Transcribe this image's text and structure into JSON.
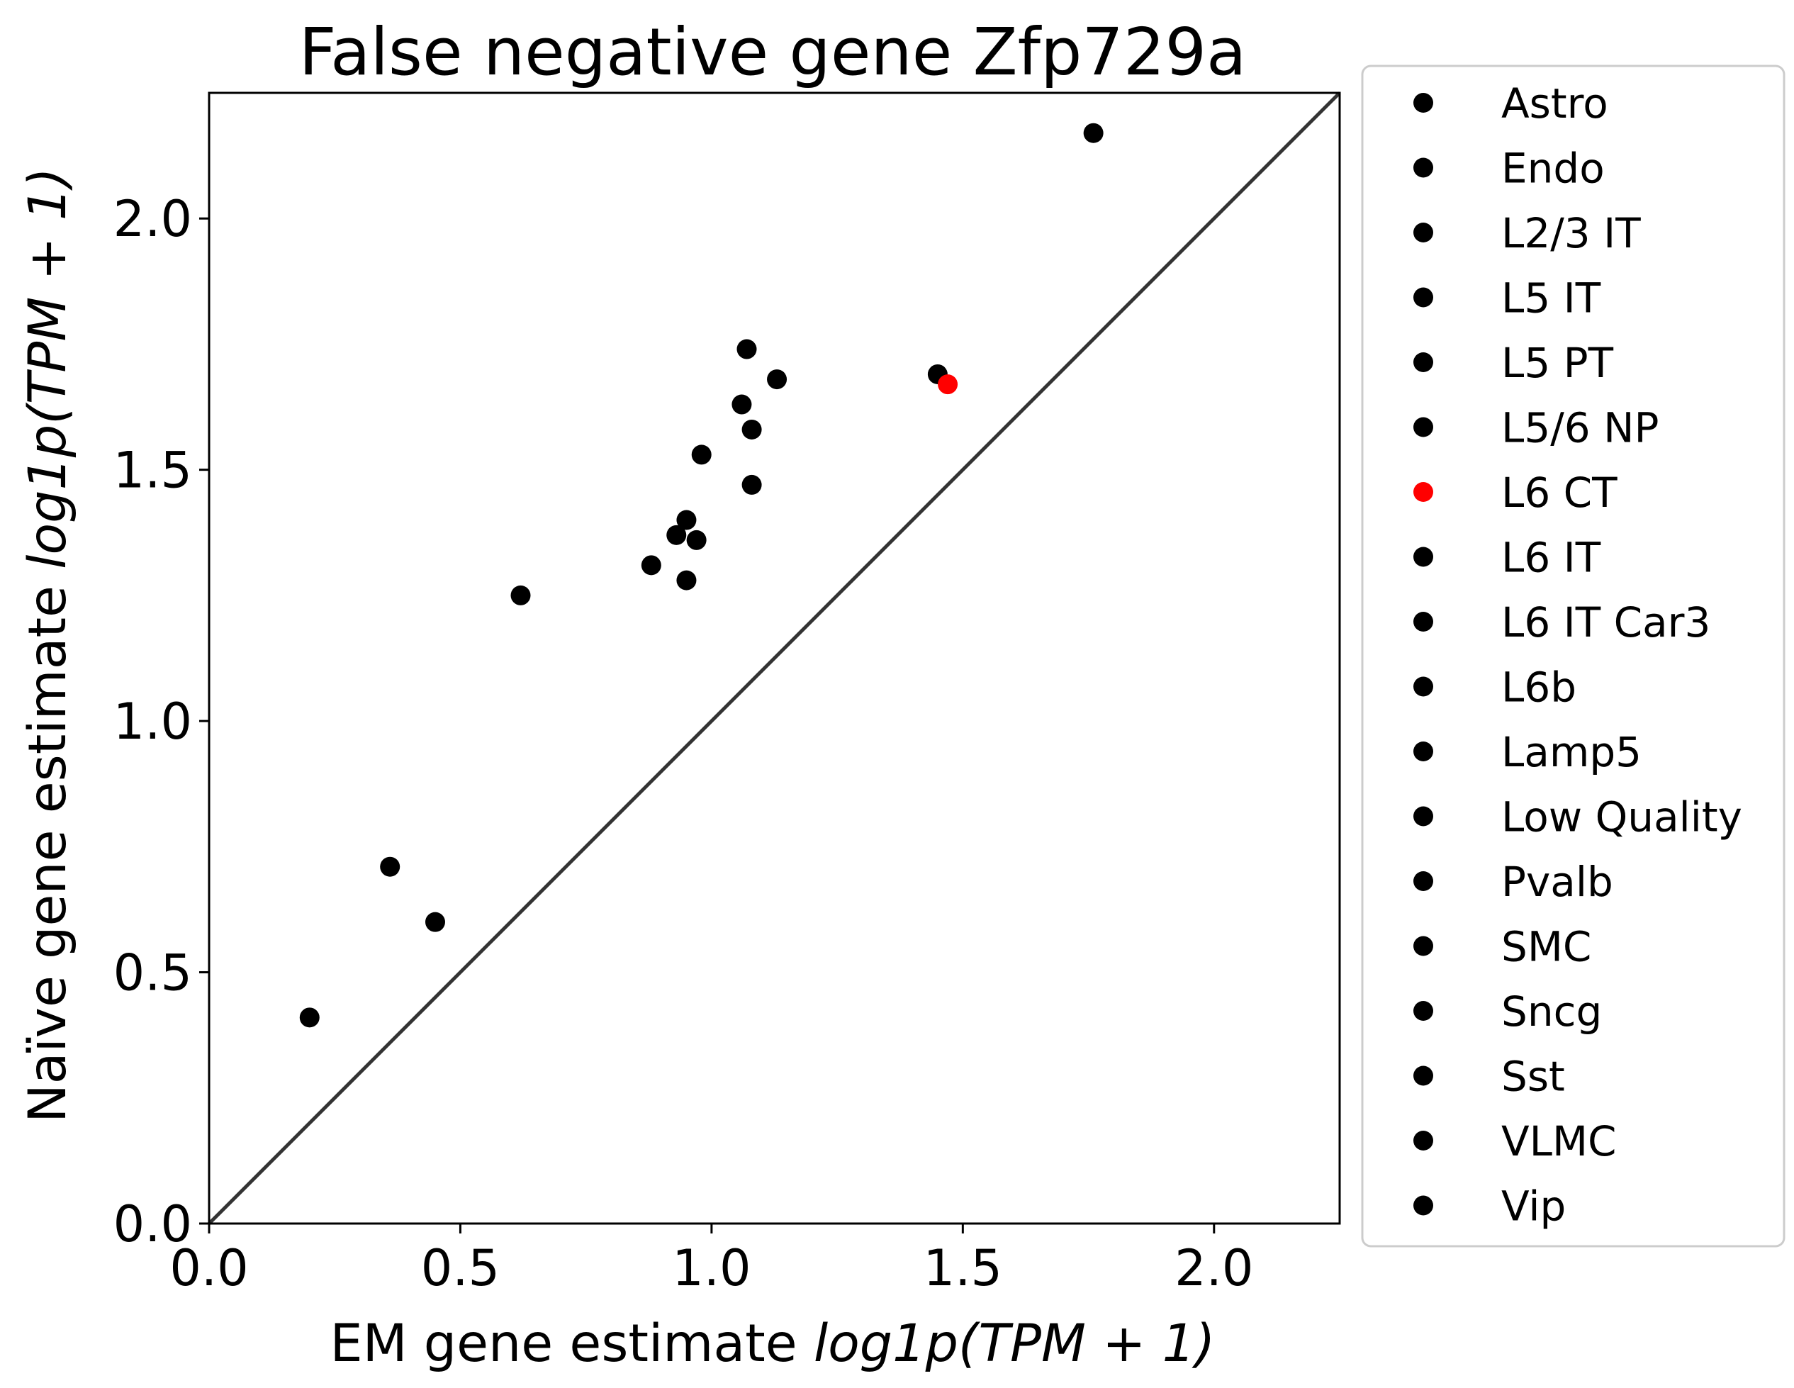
{
  "chart_data": {
    "type": "scatter",
    "title": "False negative gene Zfp729a",
    "xlabel": {
      "prefix": "EM gene estimate ",
      "math": "log1p(TPM + 1)"
    },
    "ylabel": {
      "prefix": "Naïve gene estimate ",
      "math": "log1p(TPM + 1)"
    },
    "xlim": [
      0,
      2.25
    ],
    "ylim": [
      0,
      2.25
    ],
    "xticks": [
      "0.0",
      "0.5",
      "1.0",
      "1.5",
      "2.0"
    ],
    "yticks": [
      "0.0",
      "0.5",
      "1.0",
      "1.5",
      "2.0"
    ],
    "grid": false,
    "legend_position": "outside-right",
    "reference_line": {
      "type": "identity",
      "color": "#333333"
    },
    "colors": {
      "default": "#000000",
      "highlight": "#ff0000"
    },
    "highlight_series": "L6 CT",
    "series": [
      {
        "name": "Astro",
        "x": 0.2,
        "y": 0.41
      },
      {
        "name": "Endo",
        "x": 0.36,
        "y": 0.71
      },
      {
        "name": "L2/3 IT",
        "x": 1.07,
        "y": 1.74
      },
      {
        "name": "L5 IT",
        "x": 1.06,
        "y": 1.63
      },
      {
        "name": "L5 PT",
        "x": 1.45,
        "y": 1.69
      },
      {
        "name": "L5/6 NP",
        "x": 1.76,
        "y": 2.17
      },
      {
        "name": "L6 CT",
        "x": 1.47,
        "y": 1.67
      },
      {
        "name": "L6 IT",
        "x": 1.08,
        "y": 1.58
      },
      {
        "name": "L6 IT Car3",
        "x": 1.13,
        "y": 1.68
      },
      {
        "name": "L6b",
        "x": 0.98,
        "y": 1.53
      },
      {
        "name": "Lamp5",
        "x": 0.95,
        "y": 1.4
      },
      {
        "name": "Low Quality",
        "x": 0.45,
        "y": 0.6
      },
      {
        "name": "Pvalb",
        "x": 0.93,
        "y": 1.37
      },
      {
        "name": "SMC",
        "x": 0.62,
        "y": 1.25
      },
      {
        "name": "Sncg",
        "x": 0.88,
        "y": 1.31
      },
      {
        "name": "Sst",
        "x": 0.97,
        "y": 1.36
      },
      {
        "name": "VLMC",
        "x": 0.95,
        "y": 1.28
      },
      {
        "name": "Vip",
        "x": 1.08,
        "y": 1.47
      }
    ]
  }
}
